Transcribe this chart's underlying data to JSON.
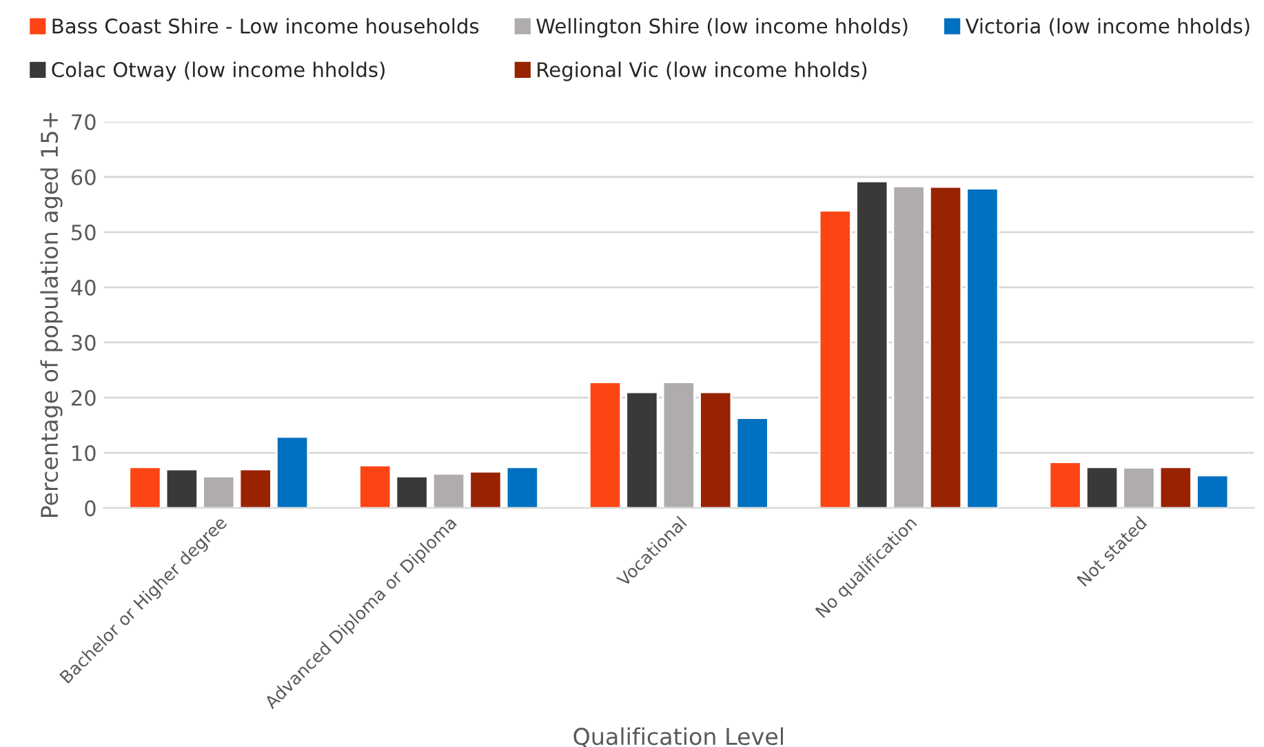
{
  "chart_data": {
    "type": "bar",
    "xlabel": "Qualification Level",
    "ylabel": "Percentage of population aged 15+",
    "categories": [
      "Bachelor or Higher degree",
      "Advanced Diploma or Diploma",
      "Vocational",
      "No qualification",
      "Not stated"
    ],
    "series": [
      {
        "name": "Bass Coast Shire - Low income households",
        "color": "#fc4514",
        "values": [
          7.4,
          7.7,
          22.8,
          53.9,
          8.3
        ]
      },
      {
        "name": "Colac Otway (low income hholds)",
        "color": "#3a3938",
        "values": [
          7.0,
          5.7,
          21.0,
          59.2,
          7.4
        ]
      },
      {
        "name": "Wellington Shire (low income hholds)",
        "color": "#afacab",
        "values": [
          5.7,
          6.2,
          22.8,
          58.3,
          7.3
        ]
      },
      {
        "name": "Regional Vic (low income hholds)",
        "color": "#992201",
        "values": [
          7.0,
          6.6,
          21.0,
          58.2,
          7.4
        ]
      },
      {
        "name": "Victoria (low income hholds)",
        "color": "#0070c0",
        "values": [
          12.9,
          7.4,
          16.3,
          57.9,
          5.9
        ]
      }
    ],
    "ylim": [
      0,
      70
    ],
    "yticks": [
      0,
      10,
      20,
      30,
      40,
      50,
      60,
      70
    ],
    "grid": "y",
    "legend": "top"
  }
}
